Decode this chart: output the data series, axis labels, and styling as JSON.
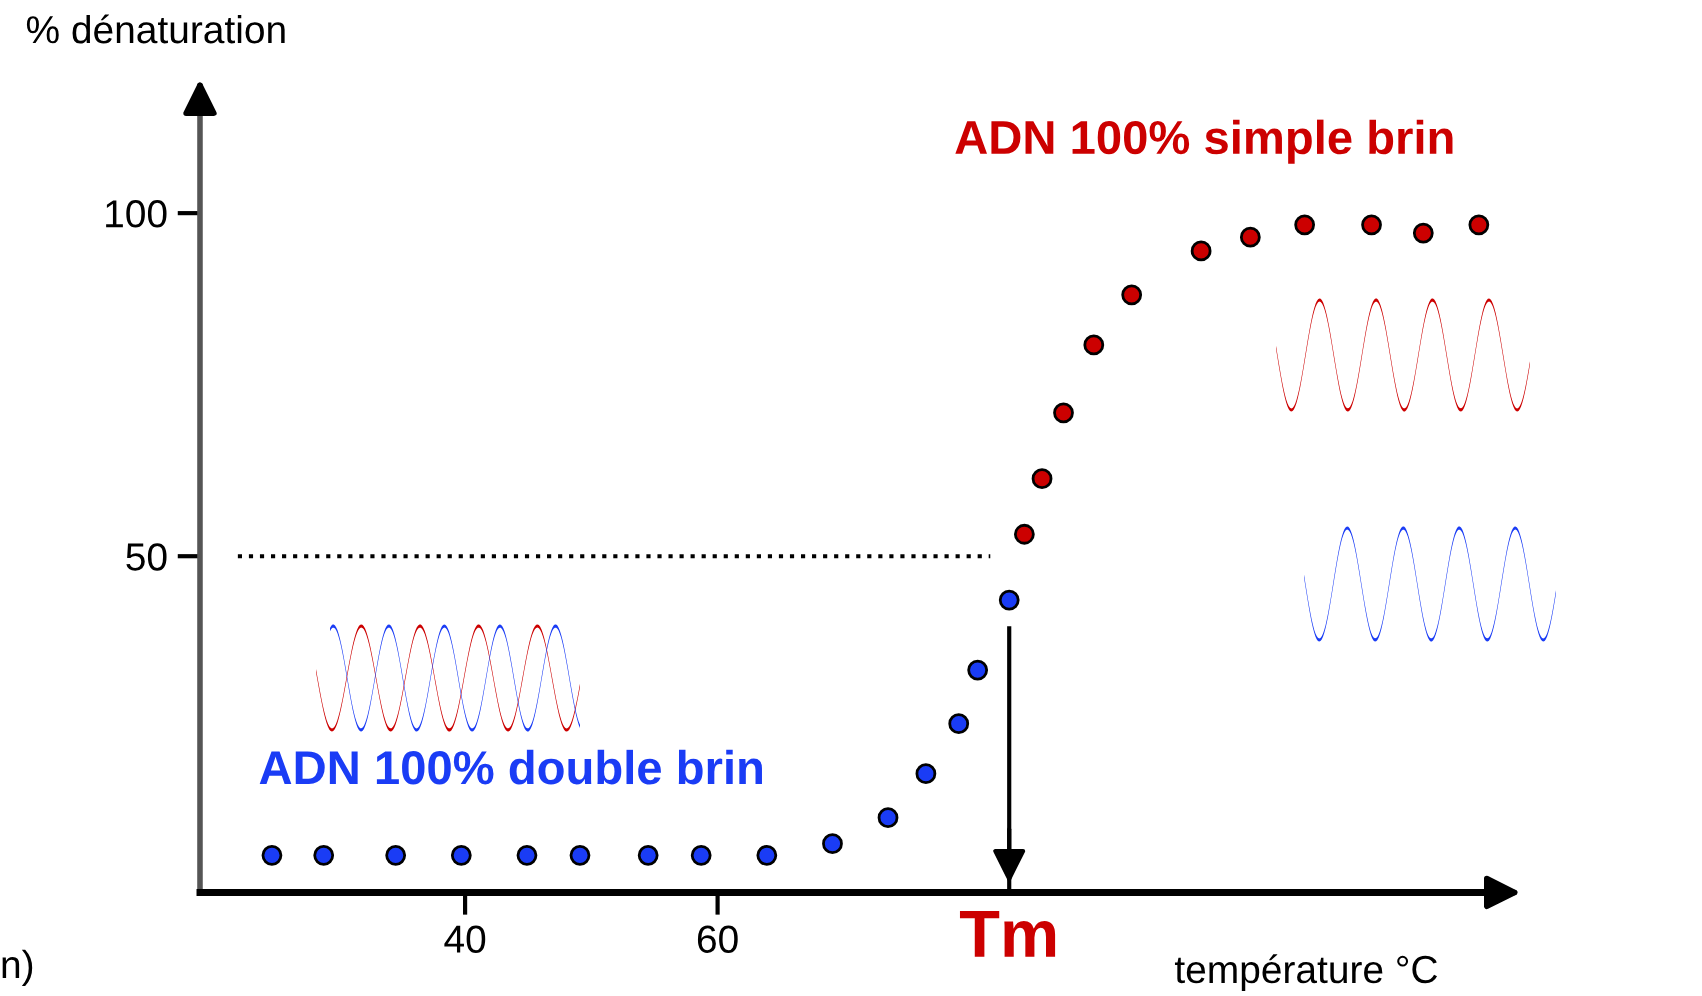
{
  "chart_data": {
    "type": "scatter",
    "xlabel": "température °C",
    "ylabel": "% dénaturation",
    "xlim": [
      19,
      122
    ],
    "ylim": [
      1,
      118
    ],
    "xticks": [
      40,
      60
    ],
    "yticks": [
      50,
      100
    ],
    "grid": false,
    "marker": "circle",
    "series": [
      {
        "name": "ADN 100% double brin",
        "color": "#1a3cf5",
        "x": [
          24.7,
          28.8,
          34.5,
          39.7,
          44.9,
          49.1,
          54.5,
          58.7,
          63.9,
          69.1,
          73.5,
          76.5,
          79.1,
          80.6,
          83.1
        ],
        "values": [
          6.4,
          6.4,
          6.4,
          6.4,
          6.4,
          6.4,
          6.4,
          6.4,
          6.4,
          8.1,
          11.9,
          18.3,
          25.6,
          33.4,
          43.6
        ]
      },
      {
        "name": "ADN 100% simple brin",
        "color": "#cc0000",
        "x": [
          84.3,
          85.7,
          87.4,
          89.8,
          92.8,
          98.3,
          102.2,
          106.5,
          111.8,
          115.9,
          120.3
        ],
        "values": [
          53.2,
          61.3,
          70.9,
          80.8,
          88.1,
          94.5,
          96.5,
          98.3,
          98.3,
          97.1,
          98.3
        ]
      }
    ],
    "ref_lines": [
      {
        "axis": "y",
        "value": 50,
        "line_style": "dotted",
        "color": "#000000"
      },
      {
        "axis": "x",
        "value": 83.1,
        "label": "Tm",
        "color": "#000000"
      }
    ],
    "annotations": [
      "n)"
    ]
  }
}
